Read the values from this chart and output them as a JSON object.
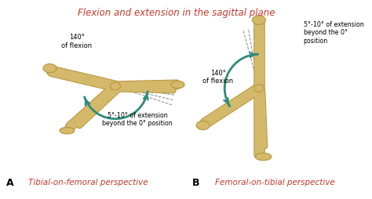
{
  "title": "Flexion and extension in the sagittal plane",
  "title_color": "#c0392b",
  "title_fontsize": 8.5,
  "background_color": "#ffffff",
  "label_A": "A",
  "label_B": "B",
  "caption_A": "Tibial-on-femoral perspective",
  "caption_B": "Femoral-on-tibial perspective",
  "caption_color": "#c0392b",
  "caption_fontsize": 7.5,
  "annotation_extension_A": "5°-10° of extension\nbeyond the 0° position",
  "annotation_flexion_A": "140°\nof flexion",
  "annotation_extension_B": "5°-10° of extension\nbeyond the 0°\nposition",
  "annotation_flexion_B": "140°\nof flexion",
  "arrow_color": "#2e8b7a",
  "bone_color": "#d4b96a",
  "bone_outline": "#b8963e",
  "dashed_color": "#888888",
  "text_color": "#000000",
  "annotation_fontsize": 6.0,
  "label_fontsize": 9
}
